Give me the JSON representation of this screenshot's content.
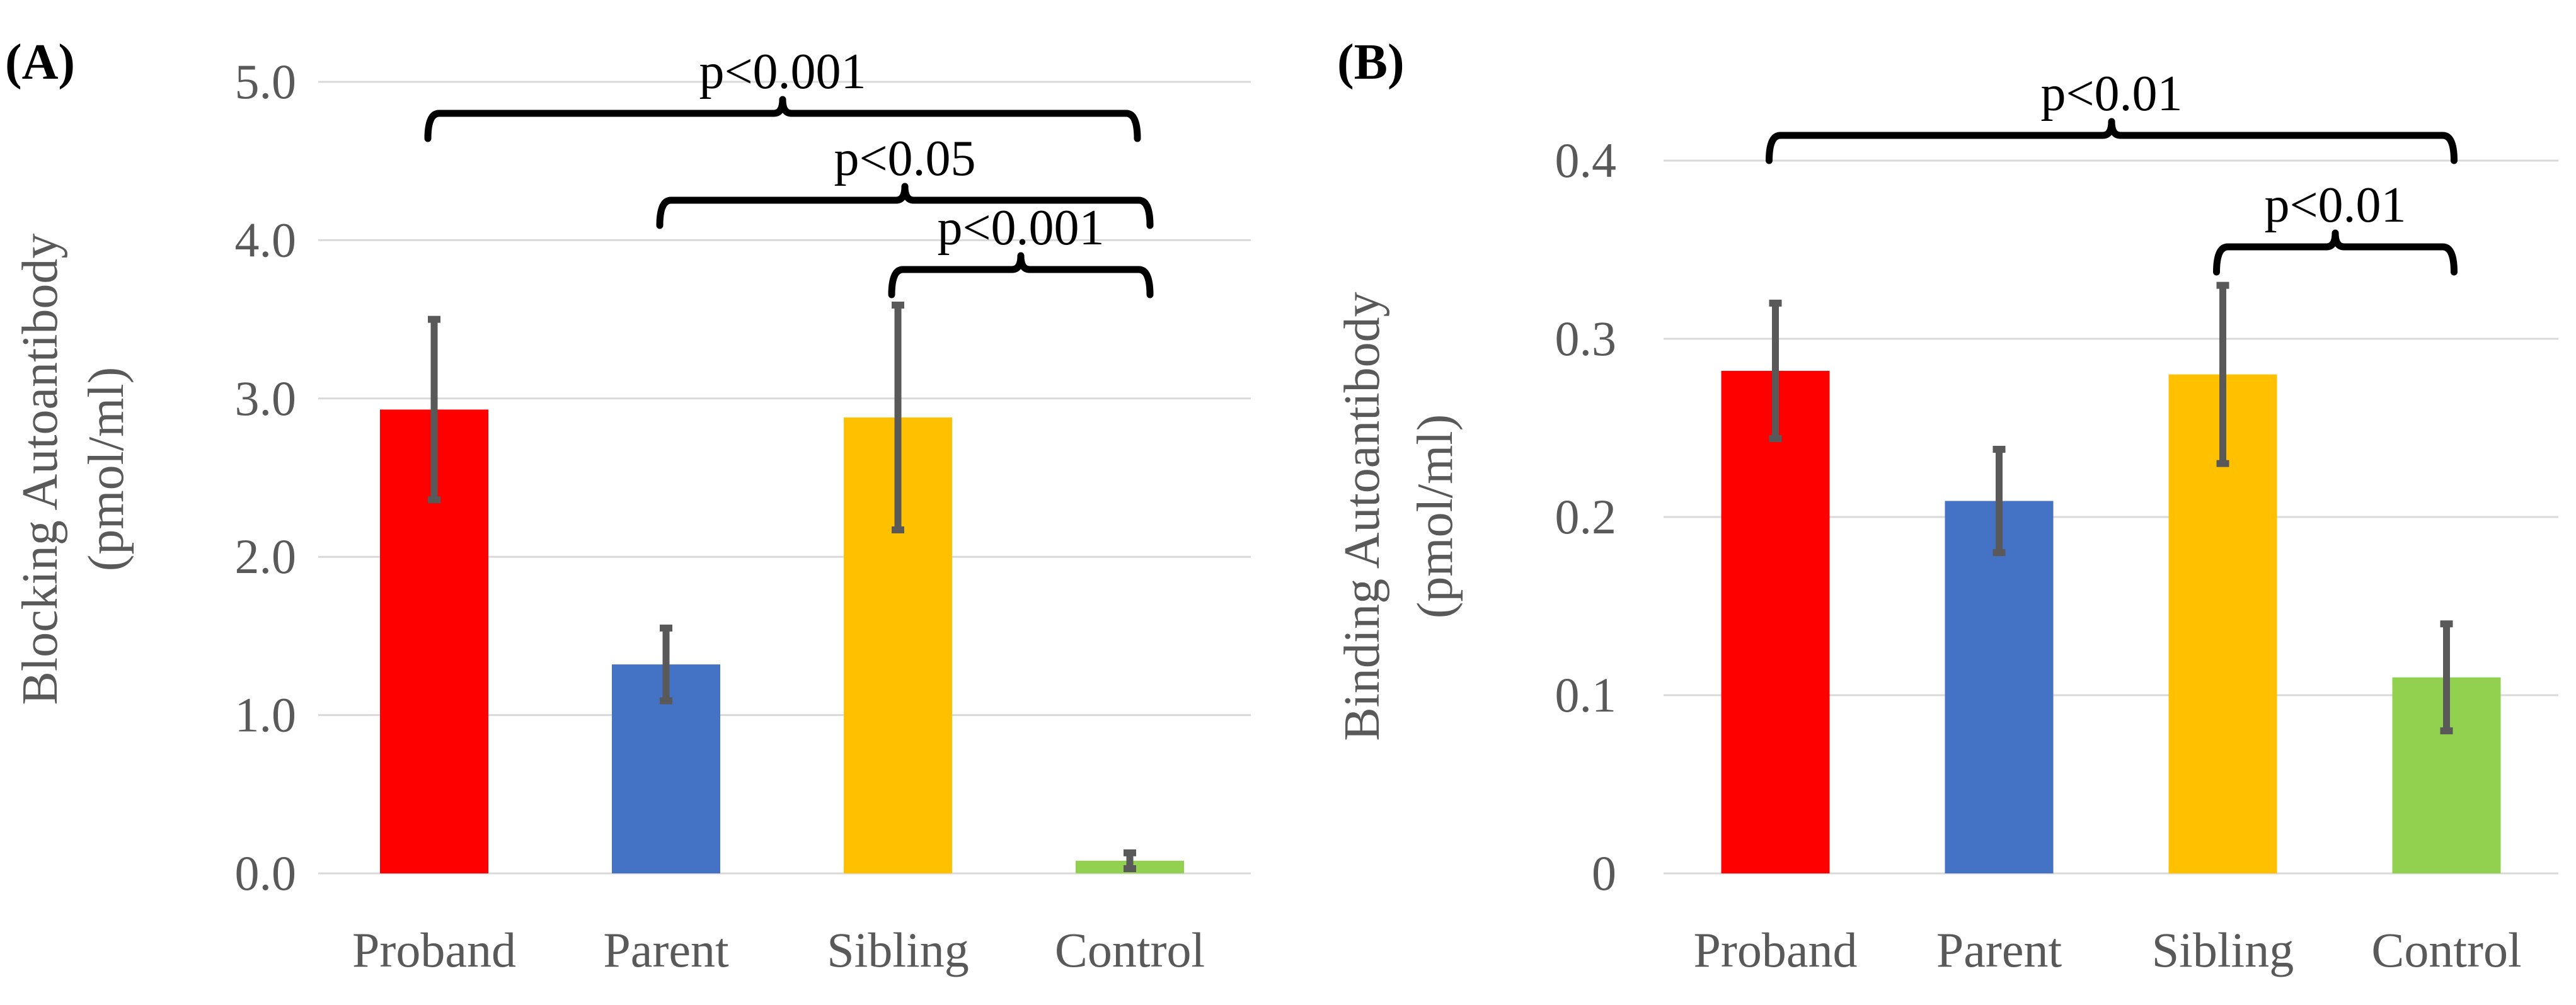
{
  "chart_data": [
    {
      "type": "bar",
      "panel_label": "(A)",
      "categories": [
        "Proband",
        "Parent",
        "Sibling",
        "Control"
      ],
      "values": [
        2.93,
        1.32,
        2.88,
        0.08
      ],
      "errors": [
        0.57,
        0.23,
        0.71,
        0.05
      ],
      "colors": [
        "#ff0000",
        "#4472c4",
        "#ffc000",
        "#92d050"
      ],
      "ylabel_line1": "Blocking Autoantibody",
      "ylabel_line2": "(pmol/ml)",
      "ylim": [
        0,
        5
      ],
      "yticks": [
        0,
        1,
        2,
        3,
        4,
        5
      ],
      "ytick_labels": [
        "0.0",
        "1.0",
        "2.0",
        "3.0",
        "4.0",
        "5.0"
      ],
      "grid": true,
      "significance": [
        {
          "from": 0,
          "to": 3,
          "label": "p<0.001"
        },
        {
          "from": 1,
          "to": 3,
          "label": "p<0.05"
        },
        {
          "from": 2,
          "to": 3,
          "label": "p<0.001"
        }
      ]
    },
    {
      "type": "bar",
      "panel_label": "(B)",
      "categories": [
        "Proband",
        "Parent",
        "Sibling",
        "Control"
      ],
      "values": [
        0.282,
        0.209,
        0.28,
        0.11
      ],
      "errors": [
        0.038,
        0.029,
        0.05,
        0.03
      ],
      "colors": [
        "#ff0000",
        "#4472c4",
        "#ffc000",
        "#92d050"
      ],
      "ylabel_line1": "Binding Autoantibody",
      "ylabel_line2": "(pmol/ml)",
      "ylim": [
        0,
        0.4
      ],
      "yticks": [
        0,
        0.1,
        0.2,
        0.3,
        0.4
      ],
      "ytick_labels": [
        "0",
        "0.1",
        "0.2",
        "0.3",
        "0.4"
      ],
      "grid": true,
      "significance": [
        {
          "from": 0,
          "to": 3,
          "label": "p<0.01"
        },
        {
          "from": 2,
          "to": 3,
          "label": "p<0.01"
        }
      ]
    }
  ]
}
